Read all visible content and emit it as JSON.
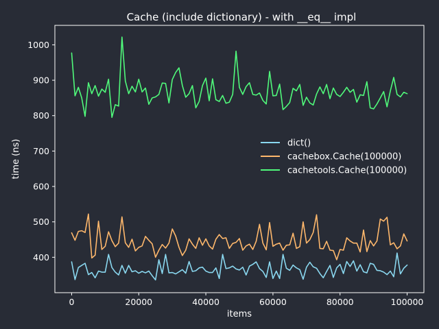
{
  "chart_data": {
    "type": "line",
    "title": "Cache (include dictionary) - with __eq__ impl",
    "xlabel": "items",
    "ylabel": "time (ns)",
    "xlim": [
      -5000,
      105000
    ],
    "ylim": [
      300,
      1055
    ],
    "x_ticks": [
      0,
      20000,
      40000,
      60000,
      80000,
      100000
    ],
    "y_ticks": [
      400,
      500,
      600,
      700,
      800,
      900,
      1000
    ],
    "grid": false,
    "legend_position": "center-right",
    "x_start": 0,
    "x_step": 1000,
    "series": [
      {
        "name": "dict()",
        "color": "#8ad8f0",
        "values": [
          387,
          337,
          371,
          377,
          383,
          351,
          357,
          342,
          361,
          358,
          358,
          408,
          371,
          358,
          350,
          377,
          355,
          377,
          359,
          362,
          355,
          360,
          356,
          361,
          348,
          336,
          393,
          354,
          408,
          356,
          357,
          353,
          359,
          365,
          355,
          388,
          360,
          362,
          370,
          372,
          361,
          357,
          357,
          370,
          340,
          408,
          368,
          370,
          375,
          367,
          364,
          372,
          350,
          375,
          380,
          387,
          368,
          360,
          343,
          387,
          340,
          361,
          340,
          408,
          369,
          363,
          378,
          370,
          365,
          338,
          372,
          386,
          373,
          369,
          354,
          342,
          360,
          377,
          343,
          370,
          380,
          354,
          388,
          374,
          390,
          361,
          379,
          359,
          356,
          383,
          380,
          363,
          362,
          358,
          351,
          361,
          345,
          412,
          353,
          369,
          378
        ]
      },
      {
        "name": "cachebox.Cache(100000)",
        "color": "#ffb86c",
        "values": [
          469,
          448,
          473,
          475,
          470,
          522,
          398,
          406,
          502,
          422,
          431,
          472,
          447,
          430,
          440,
          514,
          441,
          428,
          451,
          418,
          428,
          432,
          459,
          448,
          438,
          400,
          420,
          436,
          426,
          440,
          480,
          460,
          428,
          405,
          420,
          452,
          437,
          425,
          455,
          434,
          452,
          432,
          423,
          451,
          464,
          453,
          455,
          425,
          439,
          442,
          453,
          420,
          432,
          437,
          422,
          445,
          493,
          440,
          421,
          498,
          431,
          437,
          440,
          420,
          434,
          435,
          468,
          425,
          430,
          500,
          440,
          450,
          470,
          520,
          425,
          424,
          445,
          420,
          419,
          393,
          422,
          420,
          455,
          446,
          440,
          440,
          415,
          477,
          416,
          447,
          432,
          446,
          508,
          502,
          513,
          435,
          441,
          424,
          432,
          466,
          446
        ]
      },
      {
        "name": "cachetools.Cache(100000)",
        "color": "#50fa7b",
        "values": [
          977,
          856,
          880,
          850,
          798,
          893,
          862,
          885,
          855,
          875,
          866,
          903,
          795,
          831,
          827,
          1022,
          898,
          862,
          883,
          867,
          903,
          867,
          878,
          832,
          850,
          853,
          860,
          892,
          891,
          836,
          902,
          922,
          935,
          885,
          852,
          862,
          885,
          822,
          840,
          885,
          906,
          842,
          904,
          845,
          840,
          857,
          835,
          838,
          860,
          982,
          880,
          860,
          882,
          893,
          860,
          858,
          864,
          843,
          833,
          925,
          856,
          857,
          889,
          817,
          826,
          837,
          877,
          870,
          888,
          829,
          852,
          836,
          830,
          861,
          881,
          862,
          888,
          848,
          878,
          860,
          854,
          866,
          880,
          866,
          874,
          838,
          859,
          857,
          896,
          822,
          819,
          833,
          850,
          868,
          825,
          870,
          908,
          860,
          853,
          866,
          862
        ]
      }
    ]
  }
}
